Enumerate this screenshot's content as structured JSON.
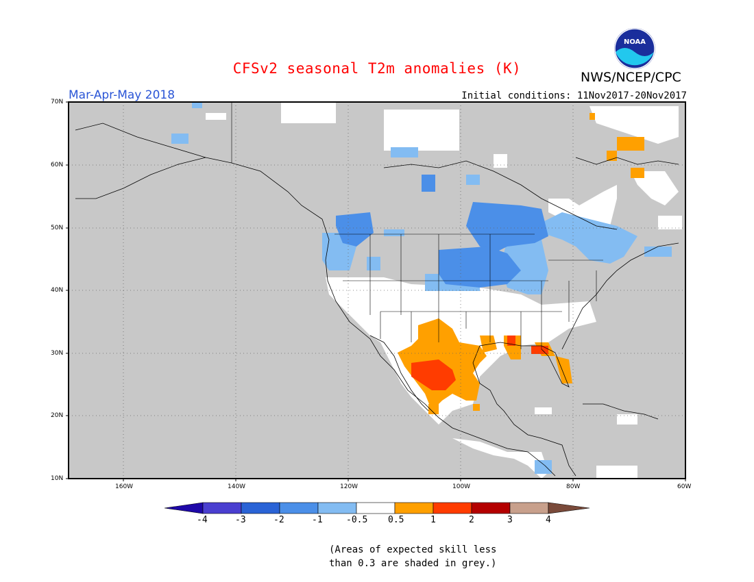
{
  "title": "CFSv2 seasonal T2m anomalies (K)",
  "organization": "NWS/NCEP/CPC",
  "logo_text": "NOAA",
  "period": "Mar-Apr-May 2018",
  "initial_conditions": "Initial conditions: 11Nov2017-20Nov2017",
  "lat_labels": [
    "70N",
    "60N",
    "50N",
    "40N",
    "30N",
    "20N",
    "10N"
  ],
  "lon_labels": [
    "160W",
    "140W",
    "120W",
    "100W",
    "80W",
    "60W"
  ],
  "colorbar": {
    "labels": [
      "-4",
      "-3",
      "-2",
      "-1",
      "-0.5",
      "0.5",
      "1",
      "2",
      "3",
      "4"
    ],
    "colors": [
      "#1e08a8",
      "#4a3fd0",
      "#2a63d6",
      "#4b8fe8",
      "#83bcf2",
      "#ffffff",
      "#ffa000",
      "#ff3c00",
      "#b40000",
      "#c8a08c",
      "#7a4a3a"
    ]
  },
  "note_line1": "(Areas of expected skill less",
  "note_line2": "than 0.3 are shaded in grey.)",
  "colors": {
    "grey_mask": "#c8c8c8",
    "cold_light": "#83bcf2",
    "cold_mid": "#4b8fe8",
    "cold_dark": "#2a63d6",
    "warm_orange": "#ffa000",
    "warm_red": "#ff3c00",
    "warm_darkred": "#b40000"
  }
}
